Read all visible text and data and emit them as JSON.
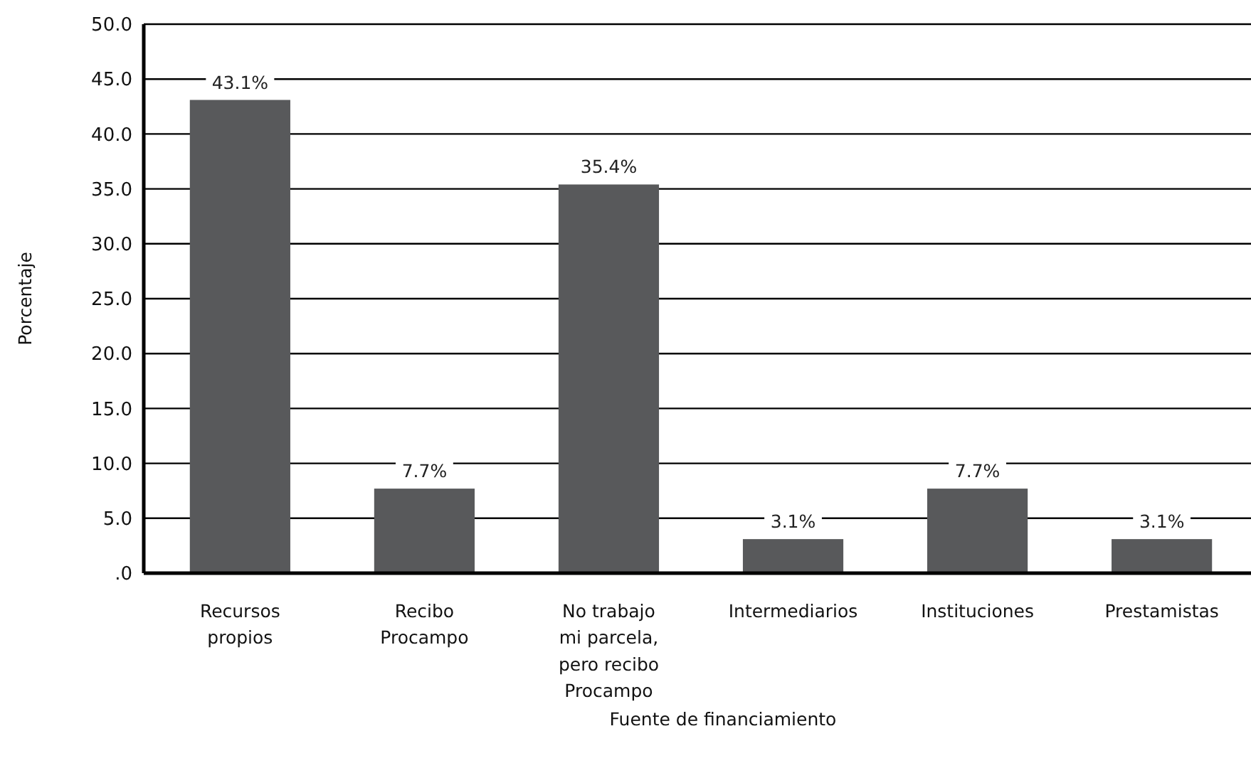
{
  "chart_data": {
    "type": "bar",
    "categories": [
      "Recursos propios",
      "Recibo Procampo",
      "No trabajo mi parcela, pero recibo Procampo",
      "Intermediarios",
      "Instituciones",
      "Prestamistas"
    ],
    "values": [
      43.1,
      7.7,
      35.4,
      3.1,
      7.7,
      3.1
    ],
    "value_labels": [
      "43.1%",
      "7.7%",
      "35.4%",
      "3.1%",
      "7.7%",
      "3.1%"
    ],
    "color": "#58595b",
    "ylim": [
      0,
      50
    ],
    "yticks": [
      {
        "value": 0,
        "label": ".0"
      },
      {
        "value": 5,
        "label": "5.0"
      },
      {
        "value": 10,
        "label": "10.0"
      },
      {
        "value": 15,
        "label": "15.0"
      },
      {
        "value": 20,
        "label": "20.0"
      },
      {
        "value": 25,
        "label": "25.0"
      },
      {
        "value": 30,
        "label": "30.0"
      },
      {
        "value": 35,
        "label": "35.0"
      },
      {
        "value": 40,
        "label": "40.0"
      },
      {
        "value": 45,
        "label": "45.0"
      },
      {
        "value": 50,
        "label": "50.0"
      }
    ],
    "grid": "y",
    "xlabel": "Fuente de financiamiento",
    "ylabel": "Porcentaje"
  }
}
